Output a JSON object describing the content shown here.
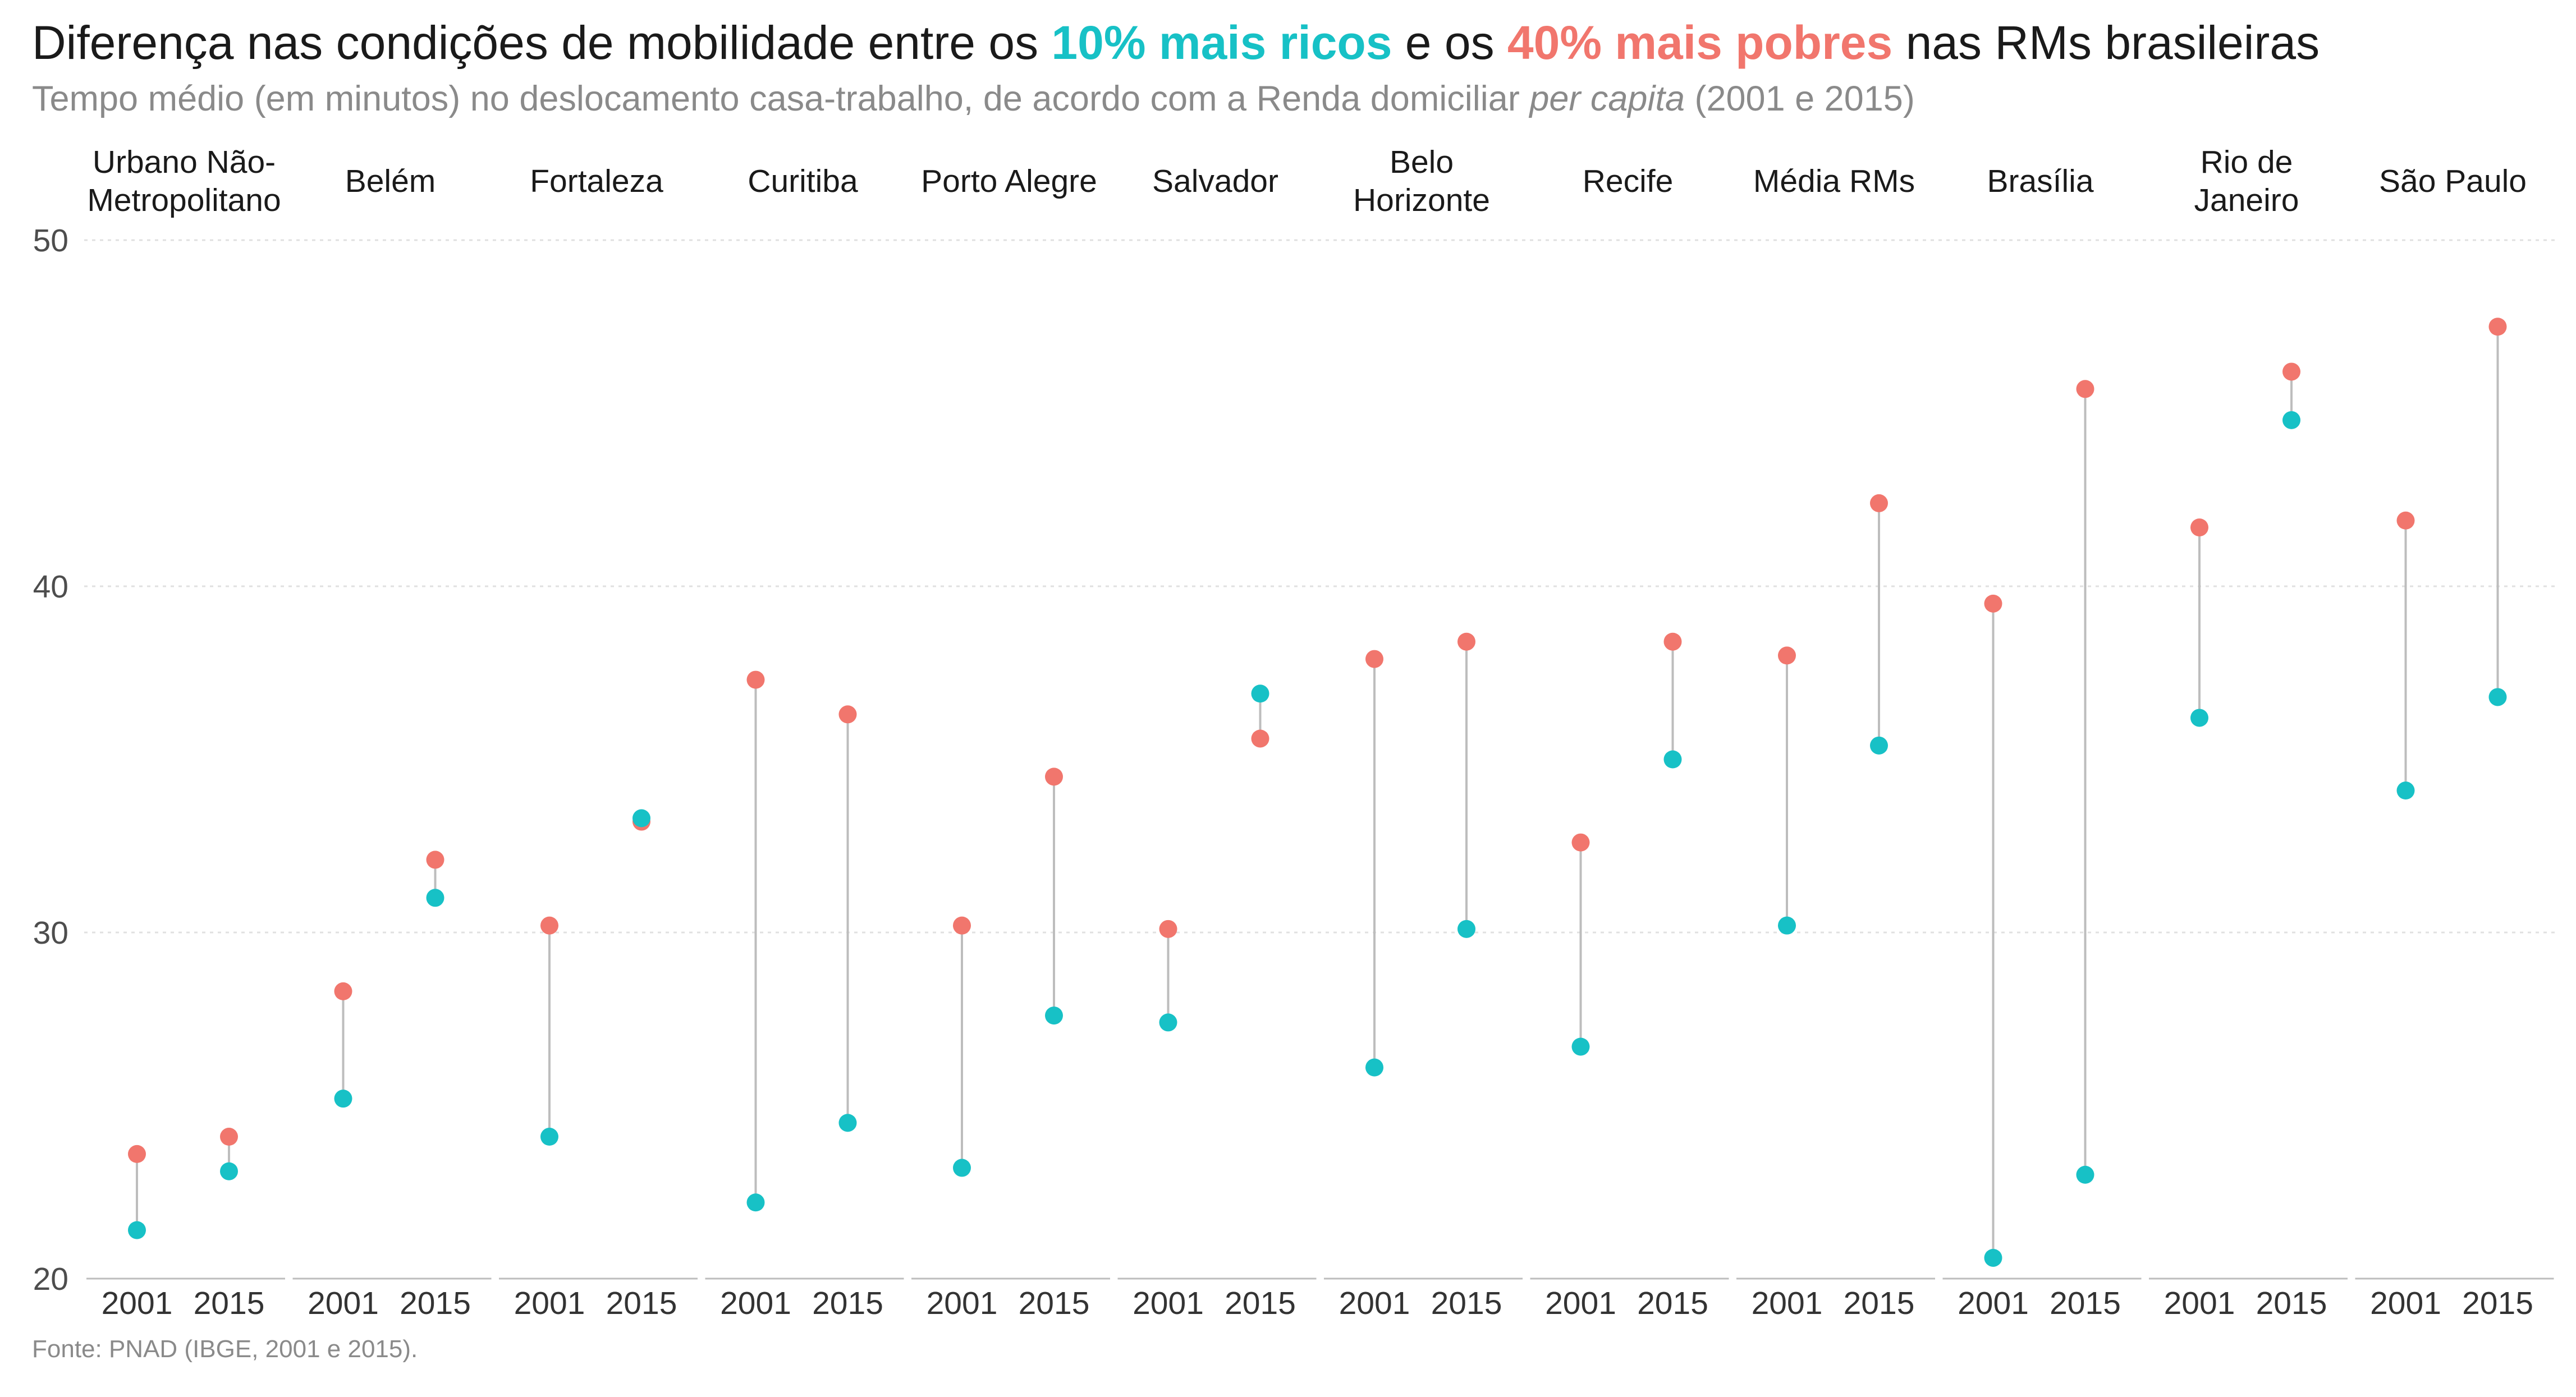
{
  "title": {
    "part1": "Diferença nas condições de mobilidade entre os ",
    "rich_label": "10% mais ricos",
    "part2": " e os ",
    "poor_label": "40% mais pobres",
    "part3": " nas RMs brasileiras"
  },
  "subtitle": {
    "part1": "Tempo médio (em minutos) no deslocamento casa-trabalho, de acordo com a Renda domiciliar ",
    "italic": "per capita",
    "part2": " (2001 e 2015)"
  },
  "source": "Fonte: PNAD (IBGE, 2001 e 2015).",
  "colors": {
    "rich": "#17c1c6",
    "poor": "#f1766d",
    "connector": "#bdbdbd",
    "grid": "#e0e0e0",
    "axis": "#bdbdbd"
  },
  "chart_data": {
    "type": "dumbbell",
    "ylim": [
      20,
      50
    ],
    "yticks": [
      20,
      30,
      40,
      50
    ],
    "grid": "horizontal dotted",
    "series": [
      {
        "name": "10% mais ricos",
        "color": "#17c1c6"
      },
      {
        "name": "40% mais pobres",
        "color": "#f1766d"
      }
    ],
    "panels": [
      {
        "label": [
          "Urbano Não-",
          "Metropolitano"
        ],
        "points": [
          {
            "year": "2001",
            "rich": 21.4,
            "poor": 23.6
          },
          {
            "year": "2015",
            "rich": 23.1,
            "poor": 24.1
          }
        ]
      },
      {
        "label": [
          "Belém"
        ],
        "points": [
          {
            "year": "2001",
            "rich": 25.2,
            "poor": 28.3
          },
          {
            "year": "2015",
            "rich": 31.0,
            "poor": 32.1
          }
        ]
      },
      {
        "label": [
          "Fortaleza"
        ],
        "points": [
          {
            "year": "2001",
            "rich": 24.1,
            "poor": 30.2
          },
          {
            "year": "2015",
            "rich": 33.3,
            "poor": 33.2
          }
        ]
      },
      {
        "label": [
          "Curitiba"
        ],
        "points": [
          {
            "year": "2001",
            "rich": 22.2,
            "poor": 37.3
          },
          {
            "year": "2015",
            "rich": 24.5,
            "poor": 36.3
          }
        ]
      },
      {
        "label": [
          "Porto Alegre"
        ],
        "points": [
          {
            "year": "2001",
            "rich": 23.2,
            "poor": 30.2
          },
          {
            "year": "2015",
            "rich": 27.6,
            "poor": 34.5
          }
        ]
      },
      {
        "label": [
          "Salvador"
        ],
        "points": [
          {
            "year": "2001",
            "rich": 27.4,
            "poor": 30.1
          },
          {
            "year": "2015",
            "rich": 36.9,
            "poor": 35.6
          }
        ]
      },
      {
        "label": [
          "Belo",
          "Horizonte"
        ],
        "points": [
          {
            "year": "2001",
            "rich": 26.1,
            "poor": 37.9
          },
          {
            "year": "2015",
            "rich": 30.1,
            "poor": 38.4
          }
        ]
      },
      {
        "label": [
          "Recife"
        ],
        "points": [
          {
            "year": "2001",
            "rich": 26.7,
            "poor": 32.6
          },
          {
            "year": "2015",
            "rich": 35.0,
            "poor": 38.4
          }
        ]
      },
      {
        "label": [
          "Média RMs"
        ],
        "points": [
          {
            "year": "2001",
            "rich": 30.2,
            "poor": 38.0
          },
          {
            "year": "2015",
            "rich": 35.4,
            "poor": 42.4
          }
        ]
      },
      {
        "label": [
          "Brasília"
        ],
        "points": [
          {
            "year": "2001",
            "rich": 20.6,
            "poor": 39.5
          },
          {
            "year": "2015",
            "rich": 23.0,
            "poor": 45.7
          }
        ]
      },
      {
        "label": [
          "Rio de",
          "Janeiro"
        ],
        "points": [
          {
            "year": "2001",
            "rich": 36.2,
            "poor": 41.7
          },
          {
            "year": "2015",
            "rich": 44.8,
            "poor": 46.2
          }
        ]
      },
      {
        "label": [
          "São Paulo"
        ],
        "points": [
          {
            "year": "2001",
            "rich": 34.1,
            "poor": 41.9
          },
          {
            "year": "2015",
            "rich": 36.8,
            "poor": 47.5
          }
        ]
      }
    ]
  }
}
